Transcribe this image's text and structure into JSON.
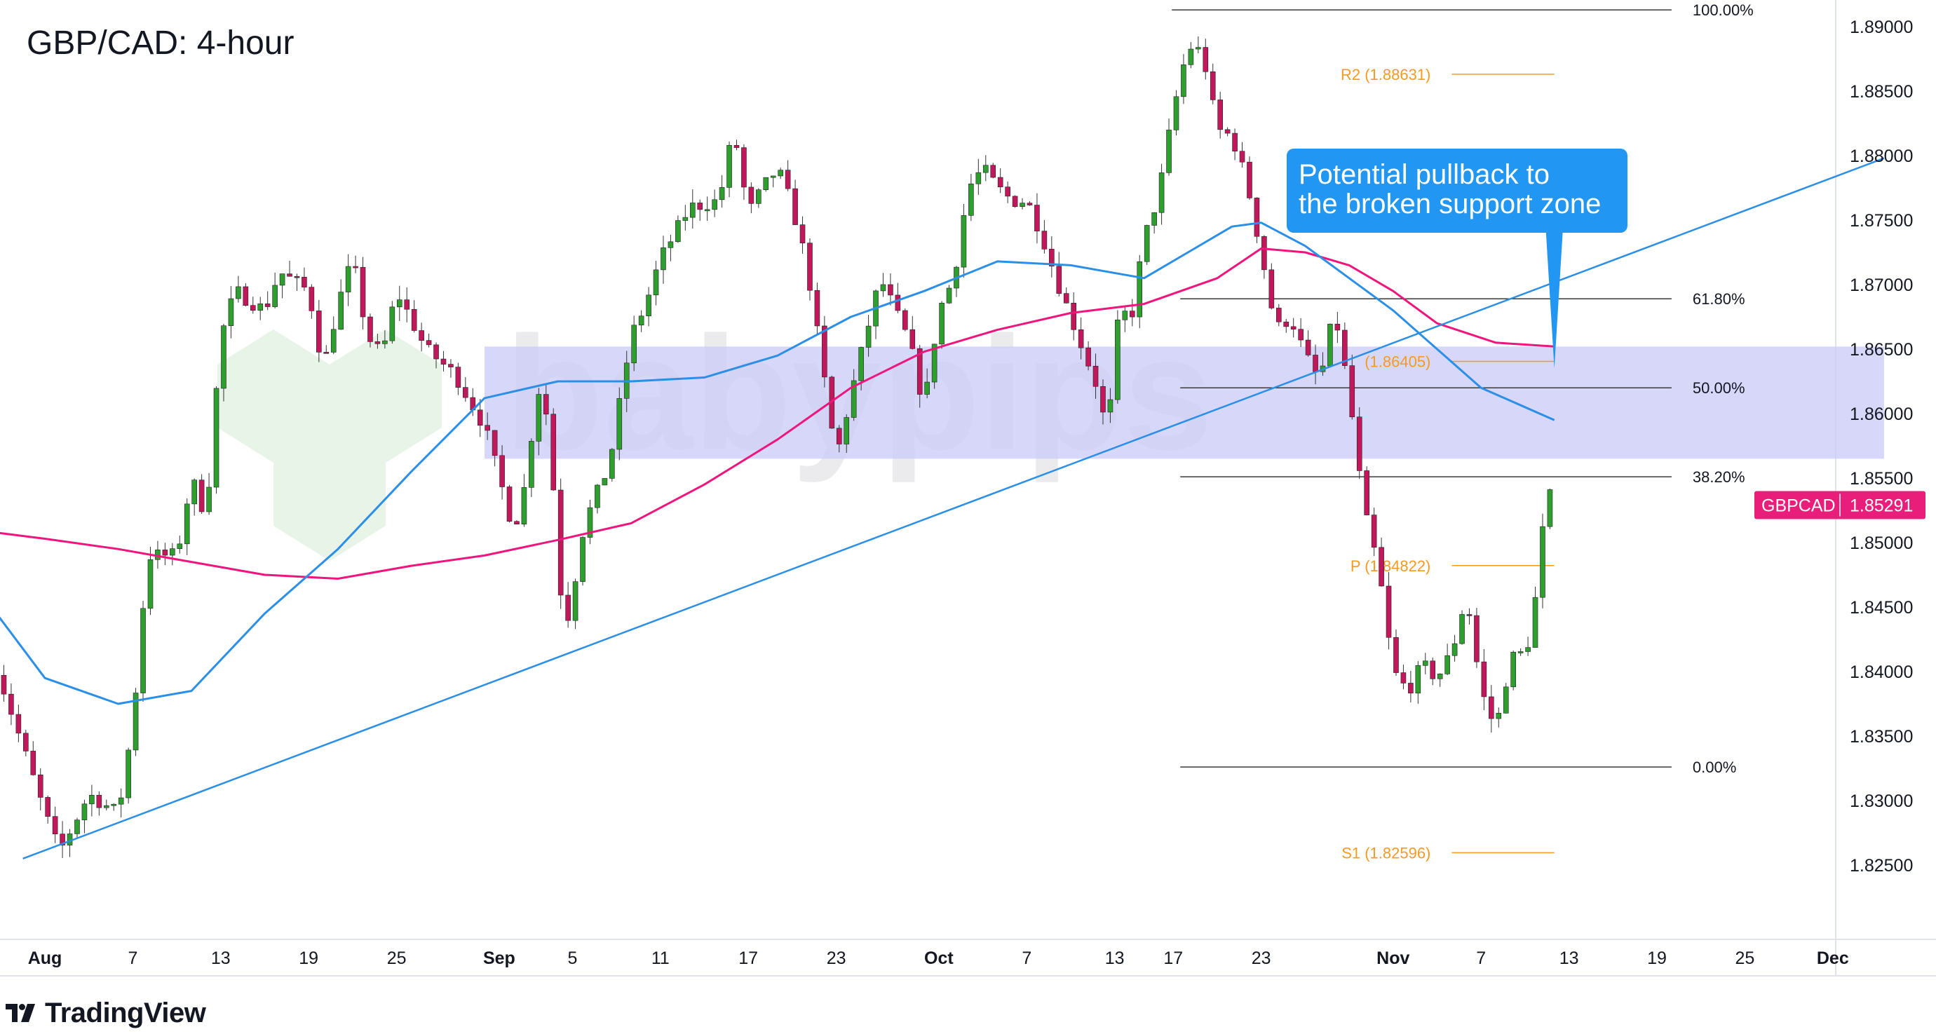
{
  "title": "GBP/CAD: 4-hour",
  "brand": {
    "name": "TradingView",
    "watermark": "babypips"
  },
  "colors": {
    "up": "#2e9e2e",
    "down": "#c2185b",
    "ma_fast": "#2b8fe8",
    "ma_slow": "#f0157c",
    "trendline": "#2b8fe8",
    "zone": "#c9cbf7",
    "fib": "#3a3a3a",
    "pivot": "#f59a23",
    "callout": "#2196f3",
    "price_tag": "#e91e7a"
  },
  "callout": {
    "lines": [
      "Potential pullback to",
      "the broken support zone"
    ]
  },
  "price_tag": {
    "symbol": "GBPCAD",
    "value": "1.85291"
  },
  "chart_data": {
    "type": "candlestick",
    "instrument": "GBP/CAD",
    "timeframe": "4-hour",
    "ylim": [
      1.8205,
      1.8932
    ],
    "y_ticks": [
      "1.89000",
      "1.88500",
      "1.88000",
      "1.87500",
      "1.87000",
      "1.86500",
      "1.86000",
      "1.85500",
      "1.85000",
      "1.84500",
      "1.84000",
      "1.83500",
      "1.83000",
      "1.82500"
    ],
    "y_tick_values": [
      1.89,
      1.885,
      1.88,
      1.875,
      1.87,
      1.865,
      1.86,
      1.855,
      1.85,
      1.845,
      1.84,
      1.835,
      1.83,
      1.825
    ],
    "x_ticks": [
      "Aug",
      "7",
      "13",
      "19",
      "25",
      "Sep",
      "5",
      "11",
      "17",
      "23",
      "Oct",
      "7",
      "13",
      "17",
      "23",
      "Nov",
      "7",
      "13",
      "19",
      "25",
      "Dec"
    ],
    "x_tick_days": [
      0,
      6,
      12,
      18,
      24,
      31,
      36,
      42,
      48,
      54,
      61,
      67,
      73,
      77,
      83,
      92,
      98,
      104,
      110,
      116,
      122
    ],
    "last_price": 1.85291,
    "price_path": [
      {
        "day": -3.5,
        "price": 1.841
      },
      {
        "day": 0,
        "price": 1.829
      },
      {
        "day": 1,
        "price": 1.826
      },
      {
        "day": 3,
        "price": 1.8305
      },
      {
        "day": 5,
        "price": 1.829
      },
      {
        "day": 6,
        "price": 1.836
      },
      {
        "day": 7,
        "price": 1.849
      },
      {
        "day": 9,
        "price": 1.849
      },
      {
        "day": 10,
        "price": 1.855
      },
      {
        "day": 11,
        "price": 1.852
      },
      {
        "day": 12,
        "price": 1.866
      },
      {
        "day": 13,
        "price": 1.8695
      },
      {
        "day": 15,
        "price": 1.868
      },
      {
        "day": 16,
        "price": 1.871
      },
      {
        "day": 18,
        "price": 1.8695
      },
      {
        "day": 19,
        "price": 1.8635
      },
      {
        "day": 20,
        "price": 1.8685
      },
      {
        "day": 21,
        "price": 1.872
      },
      {
        "day": 22,
        "price": 1.866
      },
      {
        "day": 23,
        "price": 1.8645
      },
      {
        "day": 24,
        "price": 1.8695
      },
      {
        "day": 26,
        "price": 1.865
      },
      {
        "day": 28,
        "price": 1.863
      },
      {
        "day": 30,
        "price": 1.859
      },
      {
        "day": 31,
        "price": 1.855
      },
      {
        "day": 32,
        "price": 1.851
      },
      {
        "day": 33,
        "price": 1.8555
      },
      {
        "day": 33.5,
        "price": 1.8625
      },
      {
        "day": 34.5,
        "price": 1.859
      },
      {
        "day": 35,
        "price": 1.847
      },
      {
        "day": 35.8,
        "price": 1.844
      },
      {
        "day": 36.5,
        "price": 1.85
      },
      {
        "day": 37,
        "price": 1.852
      },
      {
        "day": 38.5,
        "price": 1.856
      },
      {
        "day": 40,
        "price": 1.866
      },
      {
        "day": 41,
        "price": 1.8685
      },
      {
        "day": 42,
        "price": 1.872
      },
      {
        "day": 44,
        "price": 1.876
      },
      {
        "day": 46,
        "price": 1.8765
      },
      {
        "day": 47,
        "price": 1.882
      },
      {
        "day": 48,
        "price": 1.8755
      },
      {
        "day": 49,
        "price": 1.8775
      },
      {
        "day": 50,
        "price": 1.879
      },
      {
        "day": 51,
        "price": 1.876
      },
      {
        "day": 52,
        "price": 1.8715
      },
      {
        "day": 53,
        "price": 1.864
      },
      {
        "day": 54,
        "price": 1.8565
      },
      {
        "day": 55,
        "price": 1.8615
      },
      {
        "day": 56,
        "price": 1.866
      },
      {
        "day": 57,
        "price": 1.8705
      },
      {
        "day": 58,
        "price": 1.868
      },
      {
        "day": 59,
        "price": 1.8655
      },
      {
        "day": 60,
        "price": 1.8605
      },
      {
        "day": 61,
        "price": 1.868
      },
      {
        "day": 62,
        "price": 1.8705
      },
      {
        "day": 63,
        "price": 1.8775
      },
      {
        "day": 64,
        "price": 1.879
      },
      {
        "day": 65,
        "price": 1.8775
      },
      {
        "day": 66,
        "price": 1.8765
      },
      {
        "day": 67,
        "price": 1.8765
      },
      {
        "day": 68,
        "price": 1.874
      },
      {
        "day": 69,
        "price": 1.8705
      },
      {
        "day": 70,
        "price": 1.8675
      },
      {
        "day": 71,
        "price": 1.8645
      },
      {
        "day": 72,
        "price": 1.8615
      },
      {
        "day": 72.5,
        "price": 1.8575
      },
      {
        "day": 73,
        "price": 1.8655
      },
      {
        "day": 73.5,
        "price": 1.8685
      },
      {
        "day": 74,
        "price": 1.8665
      },
      {
        "day": 75,
        "price": 1.8735
      },
      {
        "day": 76,
        "price": 1.877
      },
      {
        "day": 77,
        "price": 1.8835
      },
      {
        "day": 78,
        "price": 1.8885
      },
      {
        "day": 79,
        "price": 1.888
      },
      {
        "day": 80,
        "price": 1.882
      },
      {
        "day": 81,
        "price": 1.8815
      },
      {
        "day": 82,
        "price": 1.878
      },
      {
        "day": 83,
        "price": 1.8725
      },
      {
        "day": 84,
        "price": 1.8665
      },
      {
        "day": 85,
        "price": 1.8675
      },
      {
        "day": 86,
        "price": 1.8645
      },
      {
        "day": 87,
        "price": 1.8625
      },
      {
        "day": 88,
        "price": 1.868
      },
      {
        "day": 89,
        "price": 1.8615
      },
      {
        "day": 90,
        "price": 1.8525
      },
      {
        "day": 91,
        "price": 1.848
      },
      {
        "day": 92,
        "price": 1.84
      },
      {
        "day": 93,
        "price": 1.8385
      },
      {
        "day": 94,
        "price": 1.8405
      },
      {
        "day": 95,
        "price": 1.8395
      },
      {
        "day": 96,
        "price": 1.8415
      },
      {
        "day": 97,
        "price": 1.846
      },
      {
        "day": 98,
        "price": 1.8385
      },
      {
        "day": 99,
        "price": 1.8355
      },
      {
        "day": 100,
        "price": 1.841
      },
      {
        "day": 101,
        "price": 1.8415
      },
      {
        "day": 101.5,
        "price": 1.8435
      },
      {
        "day": 102.5,
        "price": 1.854
      },
      {
        "day": 103,
        "price": 1.8529
      }
    ],
    "sma_fast": {
      "path": [
        {
          "day": -3.5,
          "price": 1.8448
        },
        {
          "day": 0,
          "price": 1.8395
        },
        {
          "day": 5,
          "price": 1.8375
        },
        {
          "day": 10,
          "price": 1.8385
        },
        {
          "day": 15,
          "price": 1.8445
        },
        {
          "day": 20,
          "price": 1.8495
        },
        {
          "day": 25,
          "price": 1.8555
        },
        {
          "day": 30,
          "price": 1.8612
        },
        {
          "day": 35,
          "price": 1.8625
        },
        {
          "day": 40,
          "price": 1.8625
        },
        {
          "day": 45,
          "price": 1.8628
        },
        {
          "day": 50,
          "price": 1.8645
        },
        {
          "day": 55,
          "price": 1.8675
        },
        {
          "day": 60,
          "price": 1.8695
        },
        {
          "day": 65,
          "price": 1.8718
        },
        {
          "day": 70,
          "price": 1.8715
        },
        {
          "day": 75,
          "price": 1.8705
        },
        {
          "day": 78,
          "price": 1.8725
        },
        {
          "day": 81,
          "price": 1.8745
        },
        {
          "day": 83,
          "price": 1.8748
        },
        {
          "day": 86,
          "price": 1.873
        },
        {
          "day": 89,
          "price": 1.8705
        },
        {
          "day": 92,
          "price": 1.868
        },
        {
          "day": 95,
          "price": 1.865
        },
        {
          "day": 98,
          "price": 1.862
        },
        {
          "day": 103,
          "price": 1.8595
        }
      ]
    },
    "sma_slow": {
      "path": [
        {
          "day": -3.5,
          "price": 1.8508
        },
        {
          "day": 0,
          "price": 1.8503
        },
        {
          "day": 5,
          "price": 1.8495
        },
        {
          "day": 10,
          "price": 1.8485
        },
        {
          "day": 15,
          "price": 1.8475
        },
        {
          "day": 20,
          "price": 1.8472
        },
        {
          "day": 25,
          "price": 1.8482
        },
        {
          "day": 30,
          "price": 1.849
        },
        {
          "day": 35,
          "price": 1.8502
        },
        {
          "day": 40,
          "price": 1.8515
        },
        {
          "day": 45,
          "price": 1.8545
        },
        {
          "day": 50,
          "price": 1.858
        },
        {
          "day": 55,
          "price": 1.862
        },
        {
          "day": 60,
          "price": 1.8648
        },
        {
          "day": 65,
          "price": 1.8665
        },
        {
          "day": 70,
          "price": 1.8678
        },
        {
          "day": 75,
          "price": 1.8685
        },
        {
          "day": 80,
          "price": 1.8705
        },
        {
          "day": 83,
          "price": 1.8728
        },
        {
          "day": 86,
          "price": 1.8725
        },
        {
          "day": 89,
          "price": 1.8715
        },
        {
          "day": 92,
          "price": 1.8695
        },
        {
          "day": 95,
          "price": 1.867
        },
        {
          "day": 99,
          "price": 1.8655
        },
        {
          "day": 103,
          "price": 1.8652
        }
      ]
    },
    "trendline": {
      "from": {
        "day": -1.5,
        "price": 1.8255
      },
      "to": {
        "day": 125.5,
        "price": 1.8798
      }
    },
    "support_zone": {
      "from_day": 30,
      "to_day": 125.5,
      "top": 1.8652,
      "bottom": 1.8565
    },
    "fibonacci": [
      {
        "label": "100.00%",
        "price": 1.8913
      },
      {
        "label": "61.80%",
        "price": 1.8689
      },
      {
        "label": "50.00%",
        "price": 1.862
      },
      {
        "label": "38.20%",
        "price": 1.8551
      },
      {
        "label": "0.00%",
        "price": 1.8326
      }
    ],
    "fib_range_days": [
      76.9,
      111
    ],
    "pivots": [
      {
        "label": "R2 (1.88631)",
        "price": 1.88631
      },
      {
        "label": "(1.86405)",
        "price": 1.86405
      },
      {
        "label": "P (1.84822)",
        "price": 1.84822
      },
      {
        "label": "S1 (1.82596)",
        "price": 1.82596
      }
    ],
    "pivot_range_days": [
      96,
      103
    ],
    "callout_point": {
      "day": 103,
      "price": 1.8635
    }
  }
}
